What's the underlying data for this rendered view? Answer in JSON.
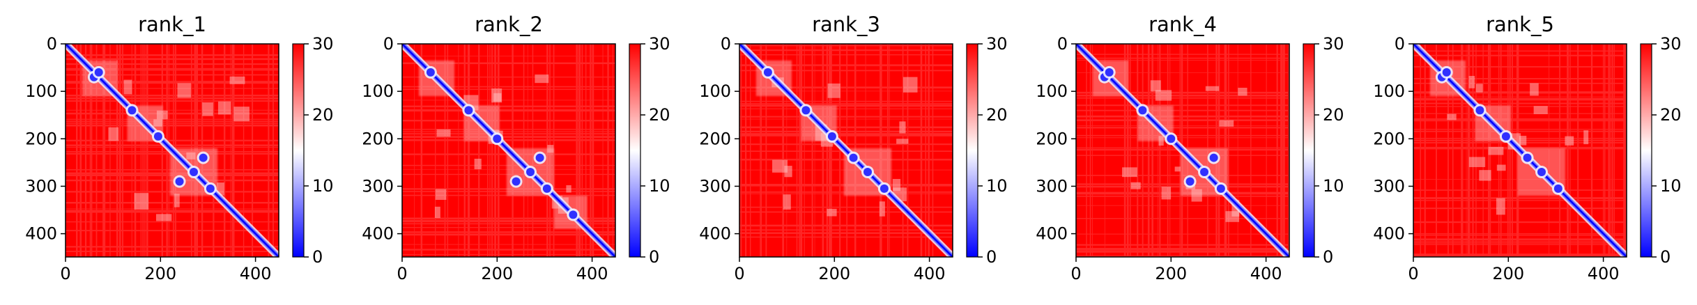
{
  "chart_data": [
    {
      "type": "heatmap",
      "title": "rank_1",
      "x_ticks": [
        0,
        200,
        400
      ],
      "y_ticks": [
        0,
        100,
        200,
        300,
        400
      ],
      "xlim": [
        0,
        449
      ],
      "ylim": [
        449,
        0
      ],
      "colorbar": {
        "ticks": [
          0,
          10,
          20,
          30
        ],
        "range": [
          0,
          30
        ],
        "colormap": "bwr"
      },
      "domains": [
        [
          35,
          110
        ],
        [
          130,
          205
        ],
        [
          220,
          320
        ]
      ],
      "blobs": [
        [
          60,
          70
        ],
        [
          140,
          140
        ],
        [
          195,
          195
        ],
        [
          270,
          270
        ],
        [
          305,
          305
        ],
        [
          290,
          240
        ]
      ]
    },
    {
      "type": "heatmap",
      "title": "rank_2",
      "x_ticks": [
        0,
        200,
        400
      ],
      "y_ticks": [
        0,
        100,
        200,
        300,
        400
      ],
      "xlim": [
        0,
        449
      ],
      "ylim": [
        449,
        0
      ],
      "colorbar": {
        "ticks": [
          0,
          10,
          20,
          30
        ],
        "range": [
          0,
          30
        ],
        "colormap": "bwr"
      },
      "domains": [
        [
          35,
          110
        ],
        [
          130,
          205
        ],
        [
          220,
          320
        ],
        [
          320,
          390
        ]
      ],
      "blobs": [
        [
          60,
          60
        ],
        [
          140,
          140
        ],
        [
          200,
          200
        ],
        [
          270,
          270
        ],
        [
          305,
          305
        ],
        [
          360,
          360
        ],
        [
          290,
          240
        ]
      ]
    },
    {
      "type": "heatmap",
      "title": "rank_3",
      "x_ticks": [
        0,
        200,
        400
      ],
      "y_ticks": [
        0,
        100,
        200,
        300,
        400
      ],
      "xlim": [
        0,
        449
      ],
      "ylim": [
        449,
        0
      ],
      "colorbar": {
        "ticks": [
          0,
          10,
          20,
          30
        ],
        "range": [
          0,
          30
        ],
        "colormap": "bwr"
      },
      "domains": [
        [
          35,
          110
        ],
        [
          130,
          205
        ],
        [
          220,
          320
        ]
      ],
      "blobs": [
        [
          60,
          60
        ],
        [
          140,
          140
        ],
        [
          195,
          195
        ],
        [
          240,
          240
        ],
        [
          270,
          270
        ],
        [
          305,
          305
        ]
      ]
    },
    {
      "type": "heatmap",
      "title": "rank_4",
      "x_ticks": [
        0,
        200,
        400
      ],
      "y_ticks": [
        0,
        100,
        200,
        300,
        400
      ],
      "xlim": [
        0,
        449
      ],
      "ylim": [
        449,
        0
      ],
      "colorbar": {
        "ticks": [
          0,
          10,
          20,
          30
        ],
        "range": [
          0,
          30
        ],
        "colormap": "bwr"
      },
      "domains": [
        [
          35,
          110
        ],
        [
          130,
          205
        ],
        [
          220,
          320
        ]
      ],
      "blobs": [
        [
          60,
          70
        ],
        [
          140,
          140
        ],
        [
          200,
          200
        ],
        [
          270,
          270
        ],
        [
          305,
          305
        ],
        [
          290,
          240
        ]
      ]
    },
    {
      "type": "heatmap",
      "title": "rank_5",
      "x_ticks": [
        0,
        200,
        400
      ],
      "y_ticks": [
        0,
        100,
        200,
        300,
        400
      ],
      "xlim": [
        0,
        449
      ],
      "ylim": [
        449,
        0
      ],
      "colorbar": {
        "ticks": [
          0,
          10,
          20,
          30
        ],
        "range": [
          0,
          30
        ],
        "colormap": "bwr"
      },
      "domains": [
        [
          35,
          110
        ],
        [
          130,
          205
        ],
        [
          220,
          320
        ]
      ],
      "blobs": [
        [
          60,
          70
        ],
        [
          140,
          140
        ],
        [
          195,
          195
        ],
        [
          240,
          240
        ],
        [
          270,
          270
        ],
        [
          305,
          305
        ]
      ]
    }
  ]
}
